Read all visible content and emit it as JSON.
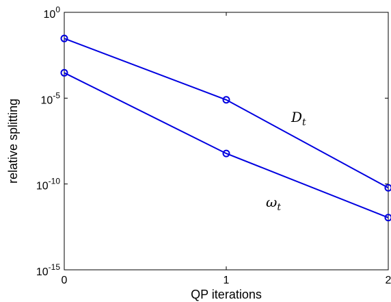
{
  "chart_data": {
    "type": "line",
    "title": "",
    "xlabel": "QP iterations",
    "ylabel": "relative splitting",
    "x": [
      0,
      1,
      2
    ],
    "xlim": [
      0,
      2
    ],
    "ylim": [
      1e-15,
      1
    ],
    "yscale": "log",
    "grid": false,
    "legend": "none",
    "xticks": [
      0,
      1,
      2
    ],
    "xtick_labels": [
      "0",
      "1",
      "2"
    ],
    "yticks": [
      {
        "value": 1,
        "base": "10",
        "exp": "0"
      },
      {
        "value": 1e-05,
        "base": "10",
        "exp": "-5"
      },
      {
        "value": 1e-10,
        "base": "10",
        "exp": "-10"
      },
      {
        "value": 1e-15,
        "base": "10",
        "exp": "-15"
      }
    ],
    "series": [
      {
        "name": "D_t",
        "label_main": "D",
        "label_sub": "t",
        "values": [
          0.03,
          8e-06,
          6e-11
        ],
        "color": "#0000e0",
        "marker": "circle"
      },
      {
        "name": "ω_t",
        "label_main": "ω",
        "label_sub": "t",
        "values": [
          0.0003,
          6e-09,
          1.1e-12
        ],
        "color": "#0000e0",
        "marker": "circle"
      }
    ]
  }
}
